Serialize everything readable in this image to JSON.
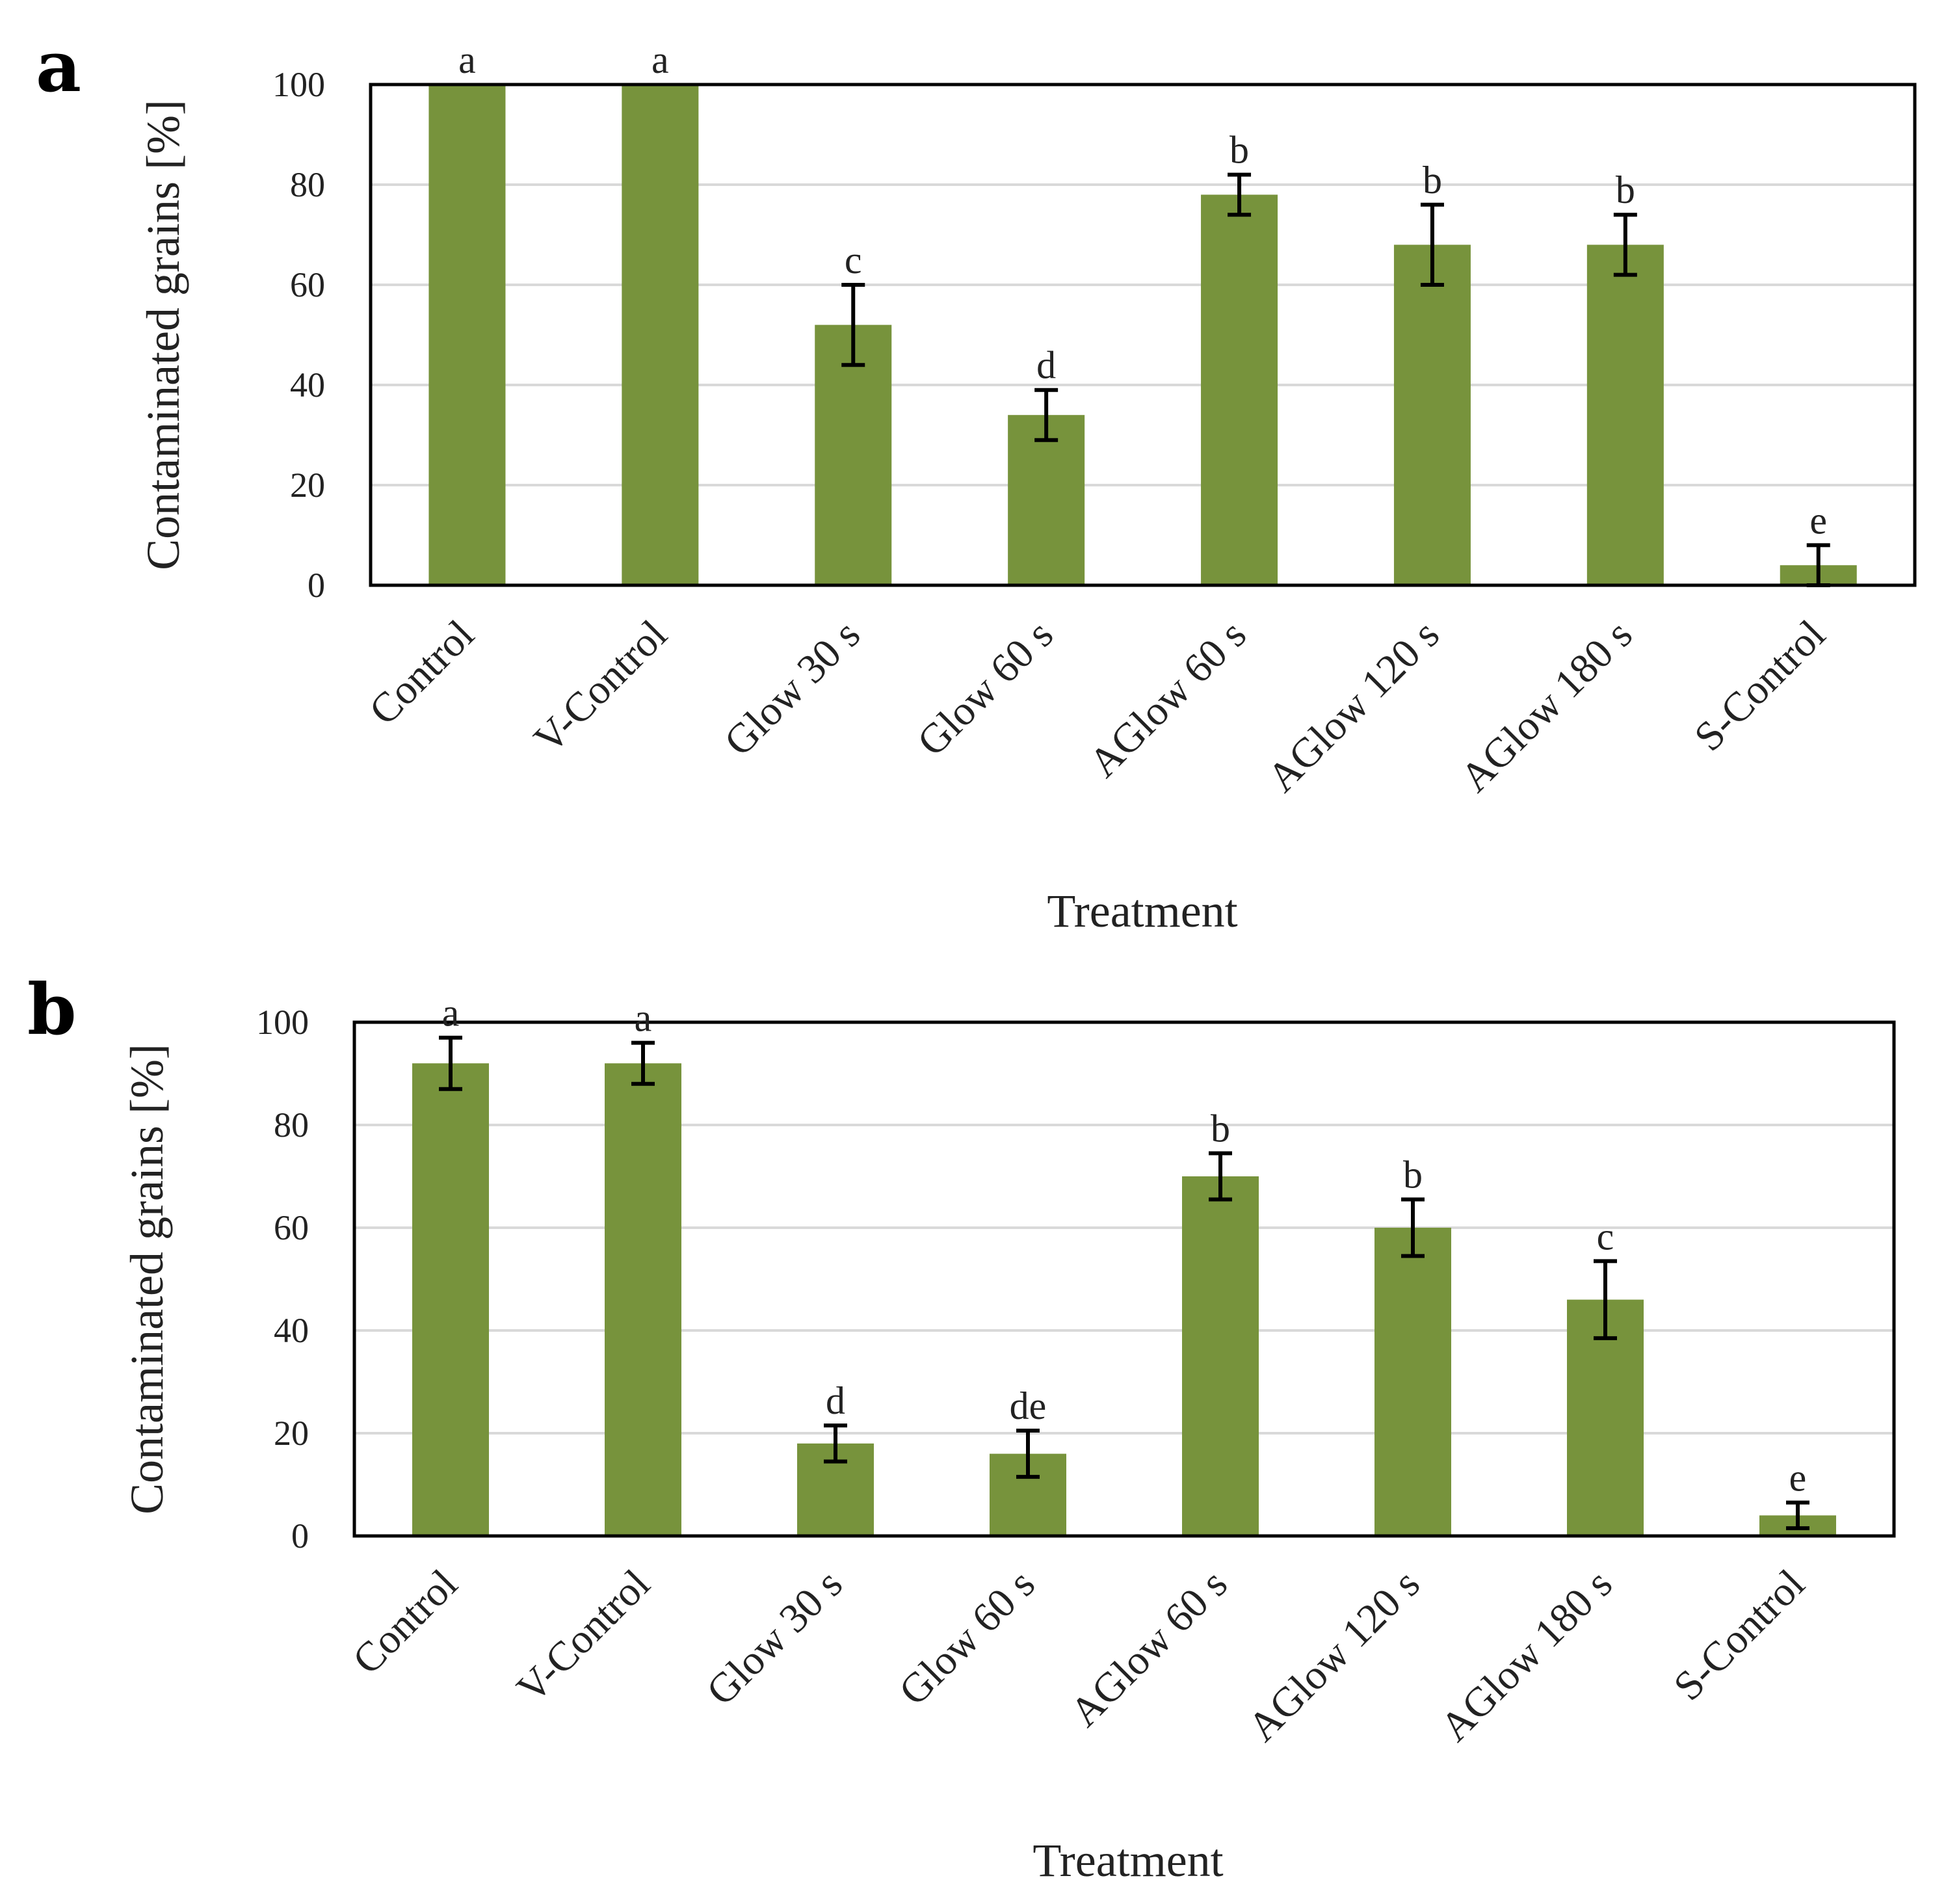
{
  "chart_data": [
    {
      "type": "bar",
      "panel": "a",
      "xlabel": "Treatment",
      "ylabel": "Contaminated grains [%]",
      "ylim": [
        0,
        100
      ],
      "yticks": [
        0,
        20,
        40,
        60,
        80,
        100
      ],
      "grid": true,
      "bar_color": "#77933c",
      "categories": [
        "Control",
        "V-Control",
        "Glow 30 s",
        "Glow 60 s",
        "AGlow 60 s",
        "AGlow 120 s",
        "AGlow 180 s",
        "S-Control"
      ],
      "values": [
        100,
        100,
        52,
        34,
        78,
        68,
        68,
        4
      ],
      "errors": [
        0,
        0,
        8,
        5,
        4,
        8,
        6,
        4
      ],
      "significance": [
        "a",
        "a",
        "c",
        "d",
        "b",
        "b",
        "b",
        "e"
      ]
    },
    {
      "type": "bar",
      "panel": "b",
      "xlabel": "Treatment",
      "ylabel": "Contaminated grains [%]",
      "ylim": [
        0,
        100
      ],
      "yticks": [
        0,
        20,
        40,
        60,
        80,
        100
      ],
      "grid": true,
      "bar_color": "#77933c",
      "categories": [
        "Control",
        "V-Control",
        "Glow 30 s",
        "Glow 60 s",
        "AGlow 60 s",
        "AGlow 120 s",
        "AGlow 180 s",
        "S-Control"
      ],
      "values": [
        92,
        92,
        18,
        16,
        70,
        60,
        46,
        4
      ],
      "errors": [
        5,
        4,
        3.5,
        4.5,
        4.5,
        5.5,
        7.5,
        2.5
      ],
      "significance": [
        "a",
        "a",
        "d",
        "de",
        "b",
        "b",
        "c",
        "e"
      ]
    }
  ]
}
